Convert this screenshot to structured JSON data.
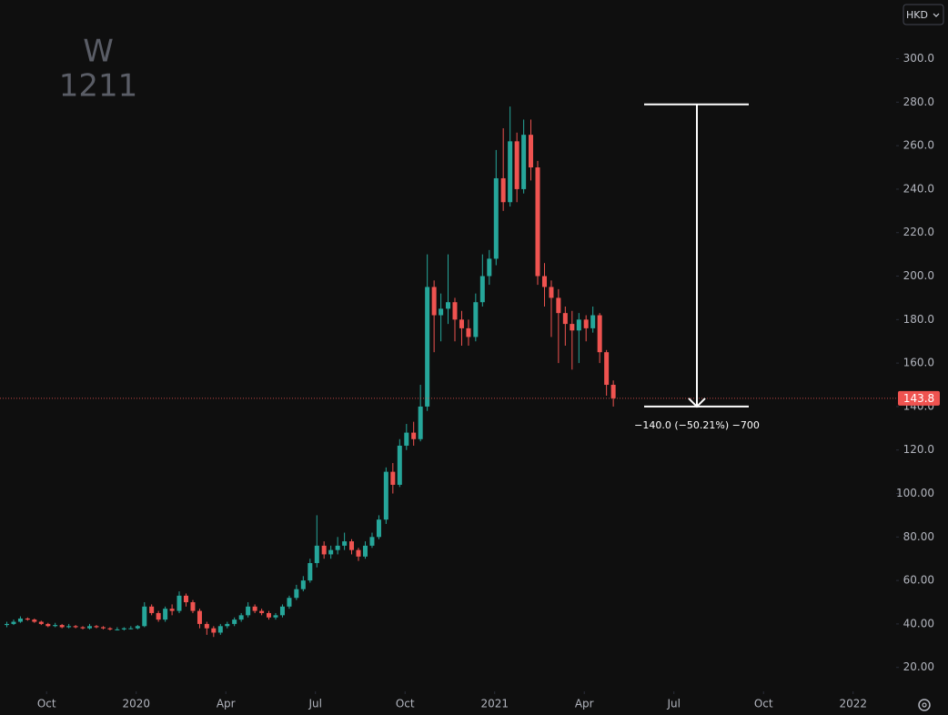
{
  "chart_data": {
    "type": "candlestick",
    "watermark": {
      "interval": "W",
      "symbol": "1211"
    },
    "currency": "HKD",
    "up_color": "#26a69a",
    "down_color": "#ef5350",
    "xlim": [
      2019.62,
      2022.12
    ],
    "ylim": [
      9,
      327
    ],
    "xticks": [
      {
        "value": 2019.75,
        "label": "Oct"
      },
      2020,
      {
        "value": 2020.25,
        "label": "Apr"
      },
      {
        "value": 2020.5,
        "label": "Jul"
      },
      {
        "value": 2020.75,
        "label": "Oct"
      },
      2021,
      {
        "value": 2021.25,
        "label": "Apr"
      },
      {
        "value": 2021.5,
        "label": "Jul"
      },
      {
        "value": 2021.75,
        "label": "Oct"
      },
      2022
    ],
    "yticks": [
      {
        "value": 20,
        "label": "20.00"
      },
      {
        "value": 40,
        "label": "40.00"
      },
      {
        "value": 60,
        "label": "60.00"
      },
      {
        "value": 80,
        "label": "80.00"
      },
      {
        "value": 100,
        "label": "100.00"
      },
      {
        "value": 120,
        "label": "120.0"
      },
      {
        "value": 140,
        "label": "140.0"
      },
      {
        "value": 160,
        "label": "160.0"
      },
      {
        "value": 180,
        "label": "180.0"
      },
      {
        "value": 200,
        "label": "200.0"
      },
      {
        "value": 220,
        "label": "220.0"
      },
      {
        "value": 240,
        "label": "240.0"
      },
      {
        "value": 260,
        "label": "260.0"
      },
      {
        "value": 280,
        "label": "280.0"
      },
      {
        "value": 300,
        "label": "300.0"
      }
    ],
    "last_price": 143.8,
    "measure": {
      "from": 279,
      "to": 140,
      "label": "−140.0 (−50.21%) −700"
    },
    "x": [
      2019.639,
      2019.658,
      2019.677,
      2019.697,
      2019.716,
      2019.735,
      2019.754,
      2019.774,
      2019.793,
      2019.812,
      2019.831,
      2019.851,
      2019.87,
      2019.889,
      2019.908,
      2019.927,
      2019.947,
      2019.966,
      2019.985,
      2020.004,
      2020.023,
      2020.043,
      2020.062,
      2020.081,
      2020.1,
      2020.12,
      2020.139,
      2020.158,
      2020.177,
      2020.197,
      2020.216,
      2020.235,
      2020.254,
      2020.274,
      2020.293,
      2020.312,
      2020.331,
      2020.35,
      2020.37,
      2020.389,
      2020.408,
      2020.427,
      2020.447,
      2020.466,
      2020.485,
      2020.504,
      2020.524,
      2020.543,
      2020.562,
      2020.581,
      2020.601,
      2020.62,
      2020.639,
      2020.658,
      2020.677,
      2020.697,
      2020.716,
      2020.735,
      2020.754,
      2020.774,
      2020.793,
      2020.812,
      2020.831,
      2020.85,
      2020.87,
      2020.889,
      2020.908,
      2020.927,
      2020.947,
      2020.966,
      2020.985,
      2021.004,
      2021.024,
      2021.043,
      2021.062,
      2021.081,
      2021.101,
      2021.12,
      2021.139,
      2021.158,
      2021.178,
      2021.197,
      2021.216,
      2021.235,
      2021.255,
      2021.274,
      2021.293,
      2021.312,
      2021.331
    ],
    "open": [
      39.5,
      40,
      41,
      42.5,
      42,
      41,
      40,
      39,
      39.5,
      38.5,
      39,
      38.5,
      38,
      39,
      38.5,
      38,
      37.5,
      37.5,
      38,
      38,
      39,
      48,
      45,
      42,
      47,
      46,
      53,
      50,
      46,
      40,
      38,
      36,
      39,
      40,
      42,
      44,
      48,
      46,
      45,
      43,
      44,
      48,
      52,
      56,
      60,
      68,
      76,
      72,
      74,
      76,
      78,
      74,
      71,
      76,
      80,
      88,
      110,
      104,
      122,
      128,
      125,
      140,
      195,
      182,
      185,
      188,
      180,
      176,
      172,
      188,
      200,
      208,
      245,
      234,
      262,
      240,
      265,
      250,
      200,
      195,
      190,
      183,
      178,
      175,
      180,
      176,
      182,
      165,
      150
    ],
    "high": [
      41,
      42,
      43.5,
      43,
      42.5,
      41.5,
      40.5,
      40.5,
      40,
      40,
      39.5,
      39,
      40,
      39.5,
      39,
      38.5,
      38.5,
      38.5,
      39,
      39.5,
      50,
      49,
      46,
      48,
      49,
      55,
      54,
      51,
      47,
      41,
      39,
      40,
      41,
      43,
      45,
      50,
      49,
      47,
      46,
      45,
      49,
      53,
      58,
      62,
      70,
      90,
      78,
      76,
      80,
      82,
      79,
      75,
      78,
      82,
      90,
      112,
      114,
      125,
      132,
      133,
      150,
      210,
      198,
      192,
      210,
      190,
      184,
      180,
      192,
      210,
      212,
      258,
      268,
      278,
      266,
      272,
      272,
      253,
      206,
      198,
      194,
      186,
      184,
      183,
      182,
      186,
      183,
      166,
      152
    ],
    "low": [
      38.5,
      39.5,
      40.5,
      41.5,
      40.5,
      39.5,
      38.5,
      38.5,
      38,
      38,
      38,
      37.5,
      37.5,
      38,
      37.5,
      37,
      37,
      37,
      37.5,
      37.5,
      38.5,
      44,
      41,
      41,
      44,
      45,
      48,
      45,
      38,
      35,
      34,
      35,
      38,
      39,
      41,
      43,
      45,
      44,
      42,
      42,
      43,
      47,
      51,
      55,
      59,
      66,
      70,
      70,
      72,
      74,
      72,
      69,
      70,
      75,
      79,
      86,
      100,
      103,
      120,
      122,
      124,
      138,
      165,
      170,
      178,
      170,
      168,
      168,
      170,
      186,
      196,
      205,
      230,
      232,
      234,
      238,
      244,
      196,
      186,
      172,
      160,
      168,
      157,
      160,
      170,
      174,
      160,
      145,
      140
    ],
    "close": [
      40,
      41,
      42.5,
      42,
      41,
      40,
      39,
      39.5,
      38.5,
      39,
      38.5,
      38,
      39,
      38.5,
      38,
      37.5,
      37.5,
      38,
      38,
      39,
      48,
      45,
      42,
      47,
      46,
      53,
      50,
      46,
      40,
      38,
      36,
      39,
      40,
      42,
      44,
      48,
      46,
      45,
      43,
      44,
      48,
      52,
      56,
      60,
      68,
      76,
      72,
      74,
      76,
      78,
      74,
      71,
      76,
      80,
      88,
      110,
      104,
      122,
      128,
      125,
      140,
      195,
      182,
      185,
      188,
      180,
      176,
      172,
      188,
      200,
      208,
      245,
      234,
      262,
      240,
      265,
      250,
      200,
      195,
      190,
      183,
      178,
      175,
      180,
      176,
      182,
      165,
      150,
      143.8
    ]
  }
}
